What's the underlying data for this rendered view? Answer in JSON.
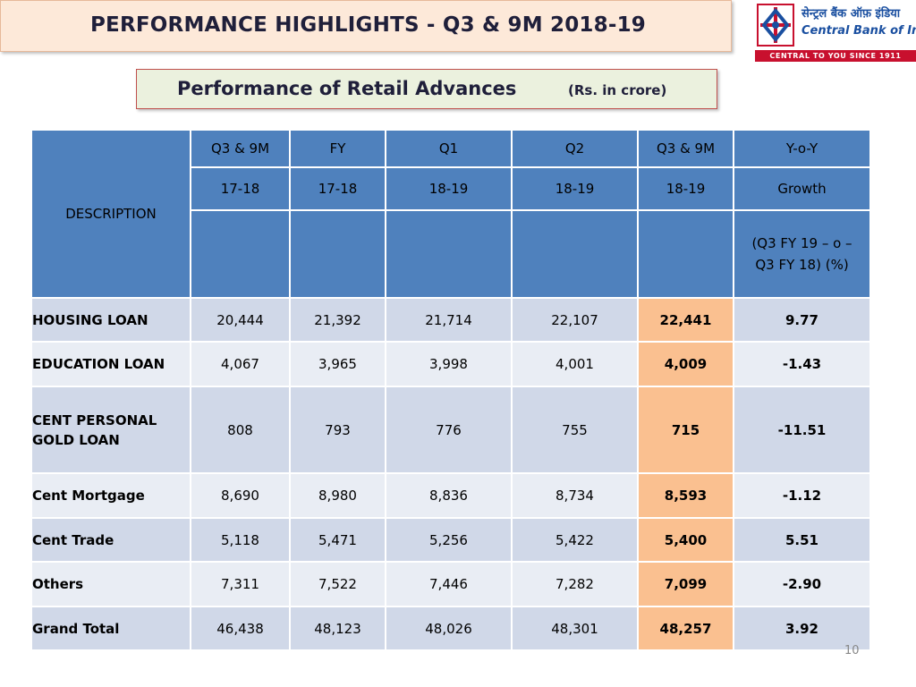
{
  "header": {
    "title": "PERFORMANCE HIGHLIGHTS - Q3 & 9M 2018-19"
  },
  "logo": {
    "hindi_name": "सेन्ट्रल बैंक ऑफ़ इंडिया",
    "english_name": "Central Bank of India",
    "tagline": "CENTRAL TO YOU SINCE 1911",
    "brand_color": "#c8102e",
    "text_color": "#1a4fa0"
  },
  "subtitle": {
    "main": "Performance of Retail Advances",
    "unit": "(Rs. in crore)"
  },
  "table": {
    "description_header": "DESCRIPTION",
    "columns": [
      {
        "line1": "Q3 & 9M",
        "line2": "17-18",
        "line3": ""
      },
      {
        "line1": "FY",
        "line2": "17-18",
        "line3": ""
      },
      {
        "line1": "Q1",
        "line2": "18-19",
        "line3": ""
      },
      {
        "line1": "Q2",
        "line2": "18-19",
        "line3": ""
      },
      {
        "line1": "Q3 & 9M",
        "line2": "18-19",
        "line3": ""
      },
      {
        "line1": "Y-o-Y",
        "line2": "Growth",
        "line3": "(Q3 FY 19 – o – Q3 FY 18) (%)"
      }
    ],
    "rows": [
      {
        "label": "HOUSING LOAN",
        "values": [
          "20,444",
          "21,392",
          "21,714",
          "22,107",
          "22,441",
          "9.77"
        ]
      },
      {
        "label": "EDUCATION LOAN",
        "values": [
          "4,067",
          "3,965",
          "3,998",
          "4,001",
          "4,009",
          "-1.43"
        ]
      },
      {
        "label": "CENT PERSONAL GOLD LOAN",
        "values": [
          "808",
          "793",
          "776",
          "755",
          "715",
          "-11.51"
        ]
      },
      {
        "label": "Cent Mortgage",
        "values": [
          "8,690",
          "8,980",
          "8,836",
          "8,734",
          "8,593",
          "-1.12"
        ]
      },
      {
        "label": "Cent Trade",
        "values": [
          "5,118",
          "5,471",
          "5,256",
          "5,422",
          "5,400",
          "5.51"
        ]
      },
      {
        "label": "Others",
        "values": [
          "7,311",
          "7,522",
          "7,446",
          "7,282",
          "7,099",
          "-2.90"
        ]
      },
      {
        "label": "Grand Total",
        "values": [
          "46,438",
          "48,123",
          "48,026",
          "48,301",
          "48,257",
          "3.92"
        ]
      }
    ],
    "colors": {
      "header_bg": "#4f81bd",
      "row_bg_a": "#d0d8e8",
      "row_bg_b": "#e9edf4",
      "highlight": "#fac090"
    }
  },
  "footer": {
    "page_number": "10"
  }
}
